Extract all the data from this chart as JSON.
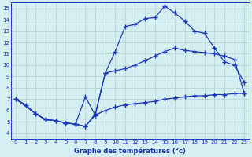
{
  "line1_x": [
    0,
    1,
    2,
    3,
    4,
    5,
    6,
    7,
    8,
    9,
    10,
    11,
    12,
    13,
    14,
    15,
    16,
    17,
    18,
    19,
    20,
    21,
    22,
    23
  ],
  "line1_y": [
    7.0,
    6.5,
    5.7,
    5.2,
    5.1,
    4.9,
    4.8,
    4.6,
    5.7,
    9.3,
    11.2,
    13.4,
    13.6,
    14.1,
    14.2,
    15.2,
    14.6,
    13.9,
    13.0,
    12.8,
    11.5,
    10.3,
    10.0,
    8.5
  ],
  "line2_x": [
    0,
    2,
    3,
    4,
    5,
    6,
    7,
    8,
    9,
    10,
    11,
    12,
    13,
    14,
    15,
    16,
    17,
    18,
    19,
    20,
    21,
    22,
    23
  ],
  "line2_y": [
    7.0,
    5.7,
    5.2,
    5.1,
    4.9,
    4.8,
    7.2,
    5.6,
    9.3,
    9.5,
    9.7,
    10.0,
    10.4,
    10.8,
    11.2,
    11.5,
    11.3,
    11.2,
    11.1,
    11.0,
    10.8,
    10.5,
    7.5
  ],
  "line3_x": [
    2,
    3,
    4,
    5,
    6,
    7,
    8,
    9,
    10,
    11,
    12,
    13,
    14,
    15,
    16,
    17,
    18,
    19,
    20,
    21,
    22,
    23
  ],
  "line3_y": [
    5.7,
    5.2,
    5.1,
    4.9,
    4.8,
    4.6,
    5.6,
    6.0,
    6.3,
    6.5,
    6.6,
    6.7,
    6.8,
    7.0,
    7.1,
    7.2,
    7.3,
    7.3,
    7.4,
    7.4,
    7.5,
    7.5
  ],
  "line_color": "#1c39bb",
  "bg_color": "#d4eef1",
  "grid_color": "#b8d8dc",
  "xlabel": "Graphe des températures (°c)",
  "xlim": [
    -0.5,
    23.5
  ],
  "ylim": [
    3.5,
    15.5
  ],
  "xticks": [
    0,
    1,
    2,
    3,
    4,
    5,
    6,
    7,
    8,
    9,
    10,
    11,
    12,
    13,
    14,
    15,
    16,
    17,
    18,
    19,
    20,
    21,
    22,
    23
  ],
  "yticks": [
    4,
    5,
    6,
    7,
    8,
    9,
    10,
    11,
    12,
    13,
    14,
    15
  ],
  "marker": "+",
  "markersize": 4.0,
  "linewidth": 0.9
}
